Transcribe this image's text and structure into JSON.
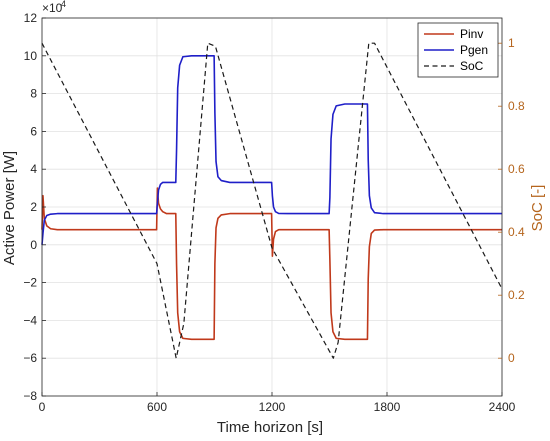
{
  "chart_data": {
    "type": "line",
    "xlabel": "Time horizon [s]",
    "ylabel_left": "Active Power [W]",
    "ylabel_right": "SoC [-]",
    "x_ticks": [
      0,
      600,
      1200,
      1800,
      2400
    ],
    "x_tick_labels": [
      "0",
      "600",
      "1200",
      "1800",
      "2400"
    ],
    "xlim": [
      0,
      2400
    ],
    "ylim_left": [
      -8,
      12
    ],
    "y_left_ticks": [
      -8,
      -6,
      -4,
      -2,
      0,
      2,
      4,
      6,
      8,
      10,
      12
    ],
    "y_left_tick_labels": [
      "−8",
      "−6",
      "−4",
      "−2",
      "0",
      "2",
      "4",
      "6",
      "8",
      "10",
      "12"
    ],
    "y_left_exponent": "×10",
    "y_left_exponent_power": "4",
    "ylim_right": [
      -0.12,
      1.08
    ],
    "y_right_ticks": [
      0,
      0.2,
      0.4,
      0.6,
      0.8,
      1
    ],
    "y_right_tick_labels": [
      "0",
      "0.2",
      "0.4",
      "0.6",
      "0.8",
      "1"
    ],
    "legend_position": "top-right",
    "grid": true,
    "series": [
      {
        "name": "Pinv",
        "axis": "left",
        "color": "#c0391b",
        "style": "solid",
        "x": [
          0,
          5,
          12,
          25,
          45,
          80,
          598,
          602,
          608,
          618,
          630,
          650,
          698,
          702,
          708,
          718,
          735,
          780,
          898,
          902,
          908,
          918,
          935,
          980,
          1198,
          1202,
          1208,
          1218,
          1235,
          1280,
          1498,
          1502,
          1508,
          1518,
          1535,
          1580,
          1698,
          1702,
          1708,
          1718,
          1735,
          1780,
          2400
        ],
        "y": [
          0.8,
          2.6,
          1.4,
          1.0,
          0.85,
          0.8,
          0.8,
          3.0,
          2.2,
          1.9,
          1.75,
          1.65,
          1.65,
          -1.0,
          -3.6,
          -4.6,
          -4.95,
          -5.0,
          -5.0,
          -1.0,
          0.9,
          1.4,
          1.58,
          1.65,
          1.65,
          -0.6,
          0.3,
          0.7,
          0.8,
          0.8,
          0.8,
          -0.8,
          -3.6,
          -4.6,
          -4.95,
          -5.0,
          -5.0,
          -1.8,
          -0.1,
          0.6,
          0.78,
          0.8,
          0.8
        ]
      },
      {
        "name": "Pgen",
        "axis": "left",
        "color": "#1f1fc8",
        "style": "solid",
        "x": [
          0,
          5,
          12,
          25,
          45,
          80,
          598,
          602,
          608,
          618,
          630,
          650,
          698,
          702,
          708,
          718,
          735,
          780,
          898,
          902,
          908,
          918,
          935,
          980,
          1198,
          1202,
          1208,
          1218,
          1235,
          1280,
          1498,
          1502,
          1508,
          1518,
          1535,
          1580,
          1698,
          1702,
          1708,
          1718,
          1735,
          1780,
          2400
        ],
        "y": [
          0.0,
          0.6,
          1.3,
          1.55,
          1.62,
          1.65,
          1.65,
          2.2,
          2.9,
          3.2,
          3.3,
          3.3,
          3.3,
          5.0,
          8.3,
          9.5,
          9.95,
          10.0,
          10.0,
          7.0,
          4.4,
          3.6,
          3.4,
          3.3,
          3.3,
          2.6,
          2.0,
          1.75,
          1.66,
          1.65,
          1.65,
          2.5,
          5.6,
          6.9,
          7.35,
          7.45,
          7.45,
          4.5,
          2.6,
          1.95,
          1.7,
          1.65,
          1.65
        ]
      },
      {
        "name": "SoC",
        "axis": "right",
        "color": "#1a1a1a",
        "style": "dashed",
        "x": [
          0,
          600,
          700,
          740,
          865,
          905,
          1200,
          1520,
          1545,
          1705,
          1735,
          2400
        ],
        "y": [
          1.0,
          0.3,
          0.0,
          0.11,
          1.0,
          0.99,
          0.35,
          0.0,
          0.05,
          1.0,
          1.0,
          0.22
        ]
      }
    ]
  }
}
